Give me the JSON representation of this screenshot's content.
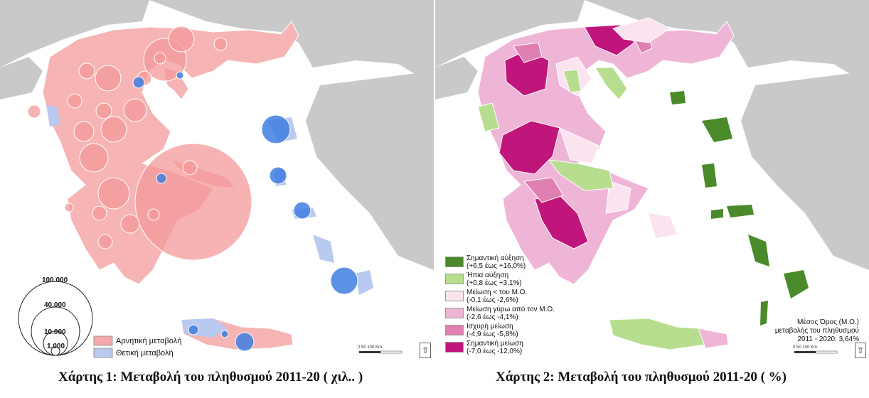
{
  "map1": {
    "caption": "Χάρτης 1: Μεταβολή του πληθυσμού 2011-20 ( χιλ.. )",
    "legend": {
      "negative_label": "Αρνητική μεταβολή",
      "positive_label": "Θετική μεταβολή",
      "negative_color": "#f6a7a7",
      "positive_color": "#b9c9f0",
      "bubble_scale": [
        "100.000",
        "40.000",
        "10.000",
        "1.000"
      ]
    },
    "scale_text": "0        50       100 Km"
  },
  "map2": {
    "caption": "Χάρτης 2: Μεταβολή του πληθυσμού 2011-20 ( %)",
    "legend": [
      {
        "label": "Σημαντική αύξηση",
        "range": "(+6,5 έως +16,0%)",
        "color": "#4a8a2a"
      },
      {
        "label": "Ήπια αύξηση",
        "range": "(+0,8 έως +3,1%)",
        "color": "#b7de8f"
      },
      {
        "label": "Μείωση < του Μ.Ο.",
        "range": "(-0,1 έως -2,6%)",
        "color": "#fbe3ef"
      },
      {
        "label": "Μείωση γύρω από τον Μ.Ο.",
        "range": "(-2,6 έως -4,1%)",
        "color": "#efb5d6"
      },
      {
        "label": "Ισχυρή μείωση",
        "range": "(-4,9 έως -5,8%)",
        "color": "#df7fb2"
      },
      {
        "label": "Σημαντική μείωση",
        "range": "(-7,0 έως -12,0%)",
        "color": "#c0157a"
      }
    ],
    "average_box": {
      "line1": "Μέσος Όρος (Μ.Ο.)",
      "line2": "μεταβολής του πληθυσμού",
      "line3": "2011 - 2020: 3,64%"
    },
    "scale_text": "0        50       100 Km"
  }
}
